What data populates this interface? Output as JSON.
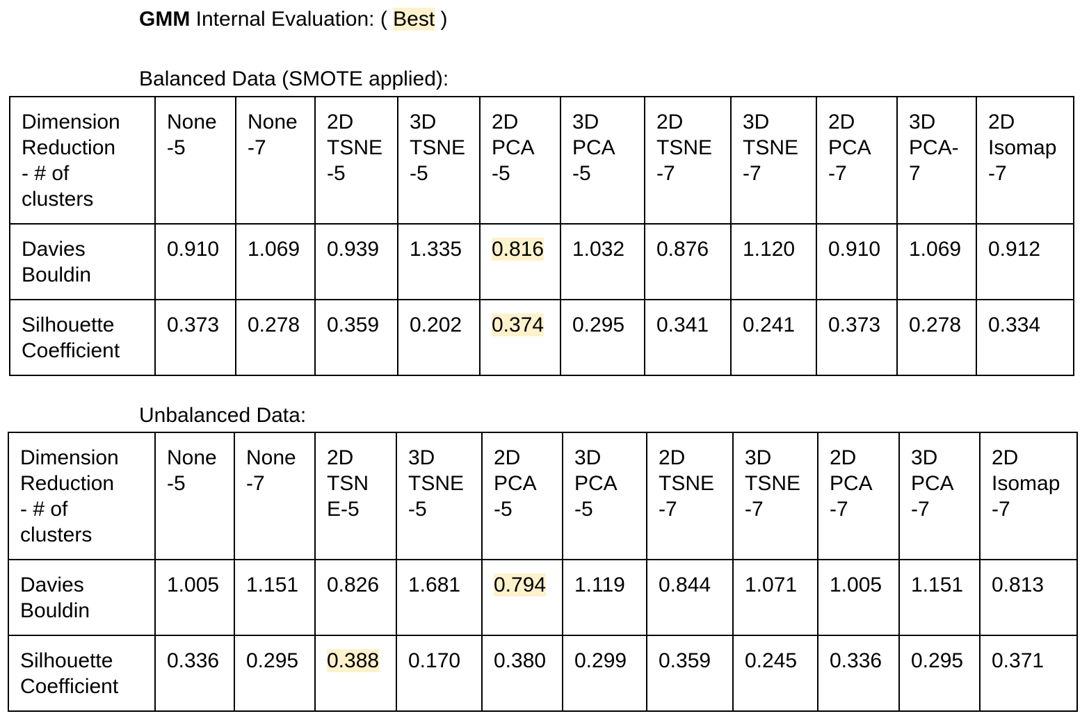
{
  "heading": {
    "bold": "GMM",
    "text_before": " Internal Evaluation: ( ",
    "best": "Best",
    "text_after": " )"
  },
  "colors": {
    "highlight": "#fdf2cc",
    "border": "#000000"
  },
  "tables": [
    {
      "label": "Balanced Data (SMOTE applied):",
      "header_label": "Dimension\nReduction\n- # of\nclusters",
      "columns": [
        "None\n-5",
        "None\n-7",
        "2D\nTSNE\n-5",
        "3D\nTSNE\n-5",
        "2D\nPCA\n-5",
        "3D\nPCA\n-5",
        "2D\nTSNE\n-7",
        "3D\nTSNE\n-7",
        "2D\nPCA\n-7",
        "3D\nPCA-\n7",
        "2D\nIsomap\n-7"
      ],
      "rows": [
        {
          "label": "Davies\nBouldin",
          "values": [
            "0.910",
            "1.069",
            "0.939",
            "1.335",
            "0.816",
            "1.032",
            "0.876",
            "1.120",
            "0.910",
            "1.069",
            "0.912"
          ],
          "best_index": 4
        },
        {
          "label": "Silhouette\nCoefficient",
          "values": [
            "0.373",
            "0.278",
            "0.359",
            "0.202",
            "0.374",
            "0.295",
            "0.341",
            "0.241",
            "0.373",
            "0.278",
            "0.334"
          ],
          "best_index": 4
        }
      ]
    },
    {
      "label": "Unbalanced Data:",
      "header_label": "Dimension\nReduction\n- # of\nclusters",
      "columns": [
        "None\n-5",
        "None\n-7",
        "2D\nTSN\nE-5",
        "3D\nTSNE\n-5",
        "2D\nPCA\n-5",
        "3D\nPCA\n-5",
        "2D\nTSNE\n-7",
        "3D\nTSNE\n-7",
        "2D\nPCA\n-7",
        "3D\nPCA\n-7",
        "2D\nIsomap\n-7"
      ],
      "rows": [
        {
          "label": "Davies\nBouldin",
          "values": [
            "1.005",
            "1.151",
            "0.826",
            "1.681",
            "0.794",
            "1.119",
            "0.844",
            "1.071",
            "1.005",
            "1.151",
            "0.813"
          ],
          "best_index": 4
        },
        {
          "label": "Silhouette\nCoefficient",
          "values": [
            "0.336",
            "0.295",
            "0.388",
            "0.170",
            "0.380",
            "0.299",
            "0.359",
            "0.245",
            "0.336",
            "0.295",
            "0.371"
          ],
          "best_index": 2
        }
      ]
    }
  ]
}
